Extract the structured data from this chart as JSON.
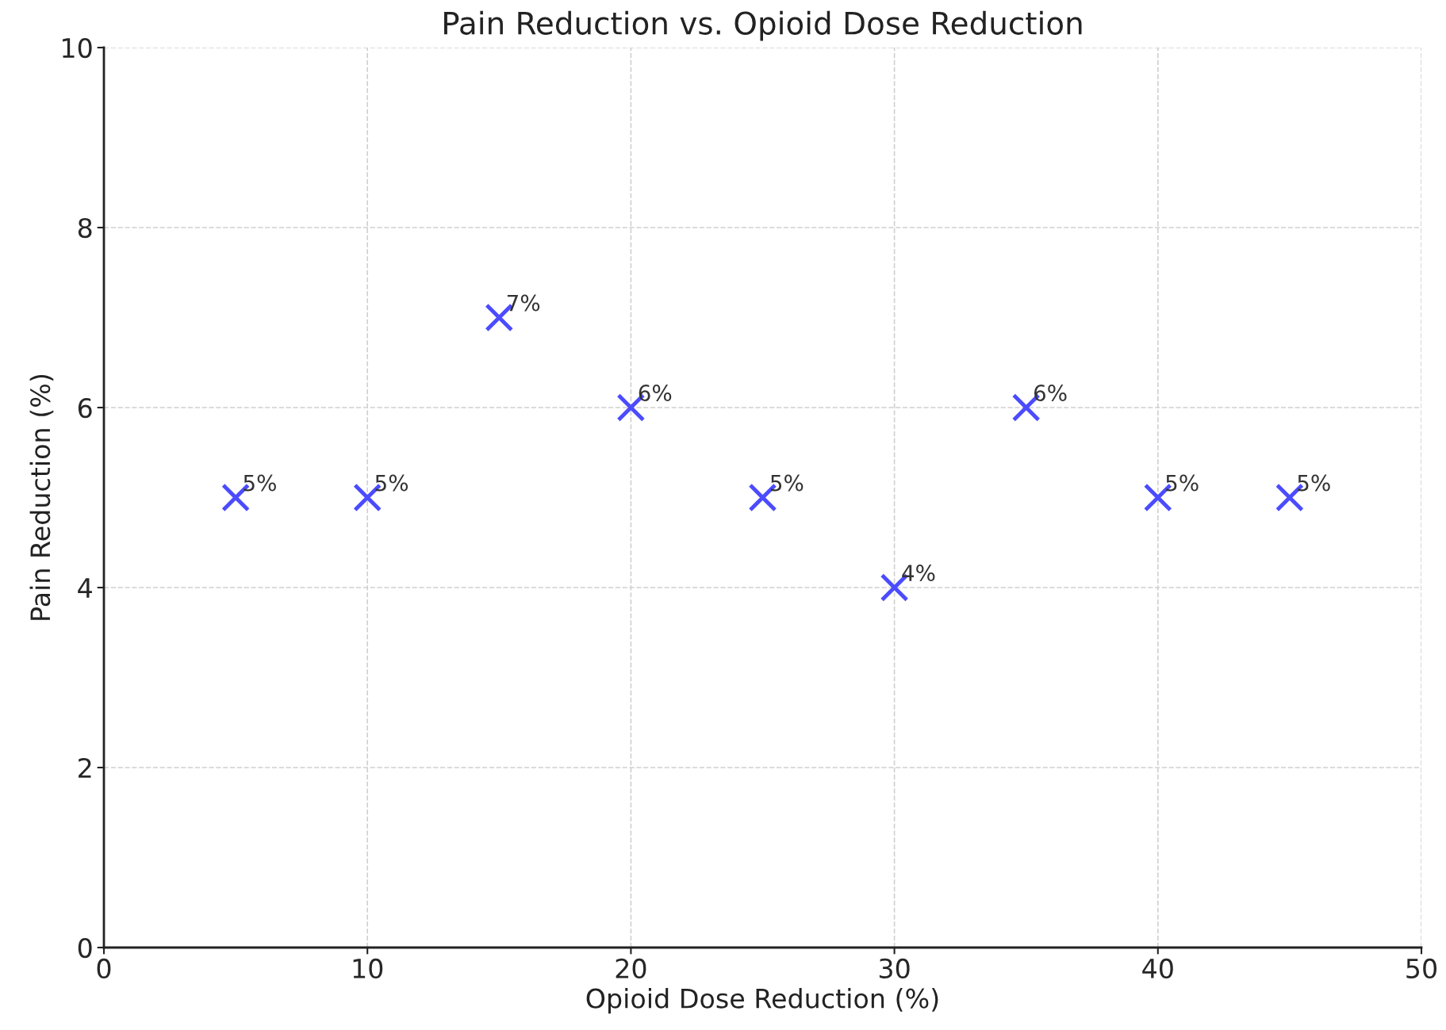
{
  "chart_data": {
    "type": "scatter",
    "title": "Pain Reduction vs. Opioid Dose Reduction",
    "xlabel": "Opioid Dose Reduction (%)",
    "ylabel": "Pain Reduction (%)",
    "x": [
      5,
      10,
      15,
      20,
      25,
      30,
      35,
      40,
      45
    ],
    "series": [
      {
        "color": "#4b4bff",
        "values": [
          5,
          5,
          7,
          6,
          5,
          4,
          6,
          5,
          5
        ],
        "value_labels": [
          "5%",
          "5%",
          "7%",
          "6%",
          "5%",
          "4%",
          "6%",
          "5%",
          "5%"
        ]
      }
    ],
    "marker": "cross",
    "xlim": [
      0,
      50
    ],
    "ylim": [
      0,
      10
    ],
    "xticks": [
      0,
      10,
      20,
      30,
      40,
      50
    ],
    "yticks": [
      0,
      2,
      4,
      6,
      8,
      10
    ],
    "grid": true
  }
}
